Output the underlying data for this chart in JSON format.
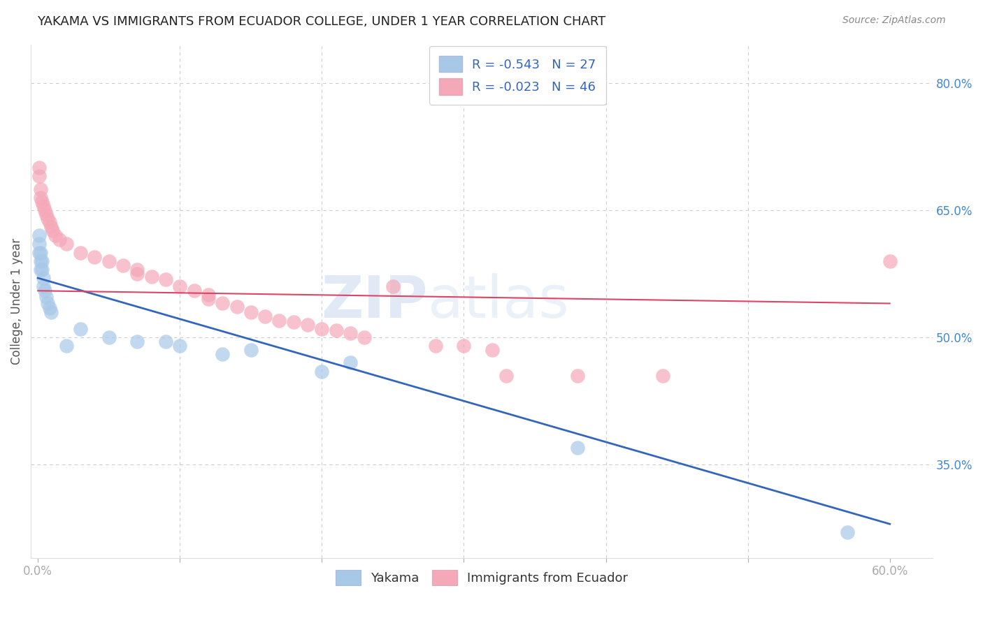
{
  "title": "YAKAMA VS IMMIGRANTS FROM ECUADOR COLLEGE, UNDER 1 YEAR CORRELATION CHART",
  "source": "Source: ZipAtlas.com",
  "ylabel": "College, Under 1 year",
  "legend_labels": [
    "Yakama",
    "Immigrants from Ecuador"
  ],
  "legend_r_n": [
    {
      "r": "-0.543",
      "n": "27"
    },
    {
      "r": "-0.023",
      "n": "46"
    }
  ],
  "xlim": [
    -0.005,
    0.63
  ],
  "ylim": [
    0.24,
    0.845
  ],
  "blue_scatter_x": [
    0.001,
    0.001,
    0.001,
    0.002,
    0.002,
    0.002,
    0.003,
    0.003,
    0.004,
    0.004,
    0.005,
    0.006,
    0.007,
    0.008,
    0.009,
    0.02,
    0.03,
    0.05,
    0.07,
    0.09,
    0.1,
    0.13,
    0.15,
    0.2,
    0.22,
    0.38,
    0.57
  ],
  "blue_scatter_y": [
    0.62,
    0.61,
    0.6,
    0.6,
    0.59,
    0.58,
    0.59,
    0.58,
    0.57,
    0.56,
    0.555,
    0.548,
    0.54,
    0.535,
    0.53,
    0.49,
    0.51,
    0.5,
    0.495,
    0.495,
    0.49,
    0.48,
    0.485,
    0.46,
    0.47,
    0.37,
    0.27
  ],
  "pink_scatter_x": [
    0.001,
    0.001,
    0.002,
    0.002,
    0.003,
    0.004,
    0.005,
    0.006,
    0.007,
    0.008,
    0.009,
    0.01,
    0.012,
    0.015,
    0.02,
    0.03,
    0.04,
    0.05,
    0.06,
    0.07,
    0.07,
    0.08,
    0.09,
    0.1,
    0.11,
    0.12,
    0.12,
    0.13,
    0.14,
    0.15,
    0.16,
    0.17,
    0.18,
    0.19,
    0.2,
    0.21,
    0.22,
    0.23,
    0.25,
    0.28,
    0.3,
    0.32,
    0.33,
    0.38,
    0.44,
    0.6
  ],
  "pink_scatter_y": [
    0.7,
    0.69,
    0.675,
    0.665,
    0.66,
    0.655,
    0.65,
    0.645,
    0.64,
    0.636,
    0.63,
    0.626,
    0.62,
    0.615,
    0.61,
    0.6,
    0.595,
    0.59,
    0.585,
    0.58,
    0.575,
    0.572,
    0.568,
    0.56,
    0.555,
    0.55,
    0.545,
    0.54,
    0.536,
    0.53,
    0.525,
    0.52,
    0.518,
    0.515,
    0.51,
    0.508,
    0.505,
    0.5,
    0.56,
    0.49,
    0.49,
    0.485,
    0.455,
    0.455,
    0.455,
    0.59
  ],
  "blue_line_x": [
    0.0,
    0.6
  ],
  "blue_line_y": [
    0.57,
    0.28
  ],
  "pink_line_x": [
    0.0,
    0.6
  ],
  "pink_line_y": [
    0.555,
    0.54
  ],
  "watermark_zip": "ZIP",
  "watermark_atlas": "atlas",
  "blue_color": "#a8c8e8",
  "pink_color": "#f4a8b8",
  "blue_line_color": "#3366bb",
  "pink_line_color": "#dd4466",
  "title_color": "#222222",
  "tick_label_color": "#4488cc",
  "background_color": "#ffffff",
  "grid_color": "#cccccc",
  "grid_style": "--"
}
